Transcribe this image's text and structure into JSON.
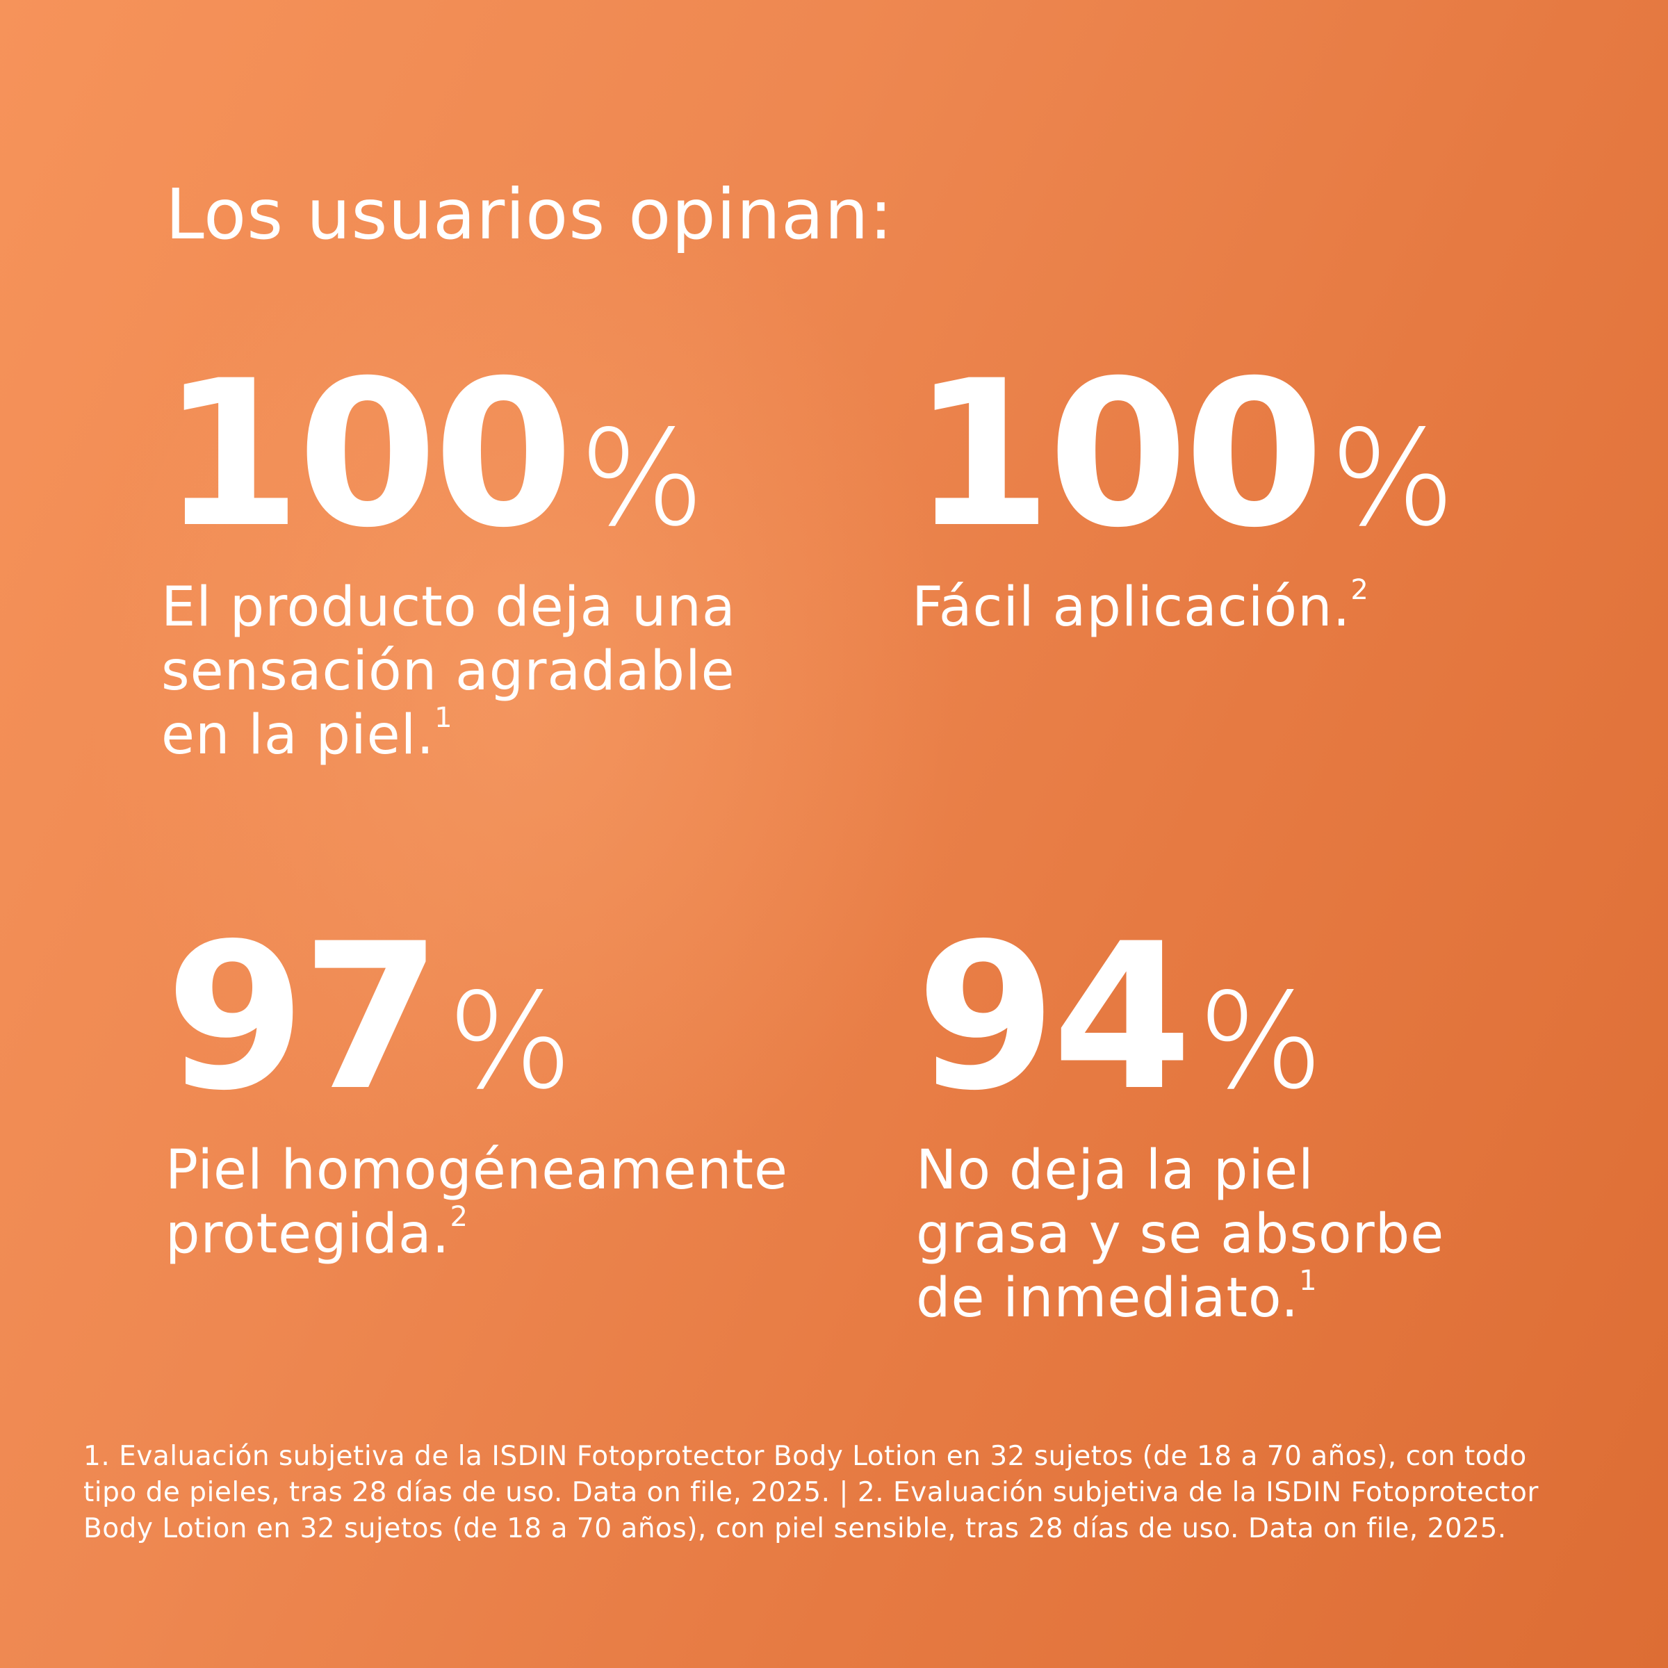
{
  "title": "Los usuarios opinan:",
  "stats": [
    {
      "value": 100,
      "unit": "%",
      "lines": [
        "El producto deja una",
        "sensación agradable",
        "en la piel."
      ],
      "note": "1"
    },
    {
      "value": 100,
      "unit": "%",
      "lines": [
        "Fácil aplicación."
      ],
      "note": "2"
    },
    {
      "value": 97,
      "unit": "%",
      "lines": [
        "Piel homogéneamente",
        "protegida."
      ],
      "note": "2"
    },
    {
      "value": 94,
      "unit": "%",
      "lines": [
        "No deja la piel",
        "grasa y se absorbe",
        "de inmediato."
      ],
      "note": "1"
    }
  ],
  "footnote": "1. Evaluación subjetiva de la ISDIN Fotoprotector Body Lotion en 32 sujetos (de 18 a 70 años), con todo tipo de pieles, tras 28 días de uso. Data on file, 2025. | 2. Evaluación subjetiva de la ISDIN Fotoprotector Body Lotion en 32 sujetos (de 18 a 70 años), con piel sensible, tras 28 días de uso. Data on file, 2025."
}
